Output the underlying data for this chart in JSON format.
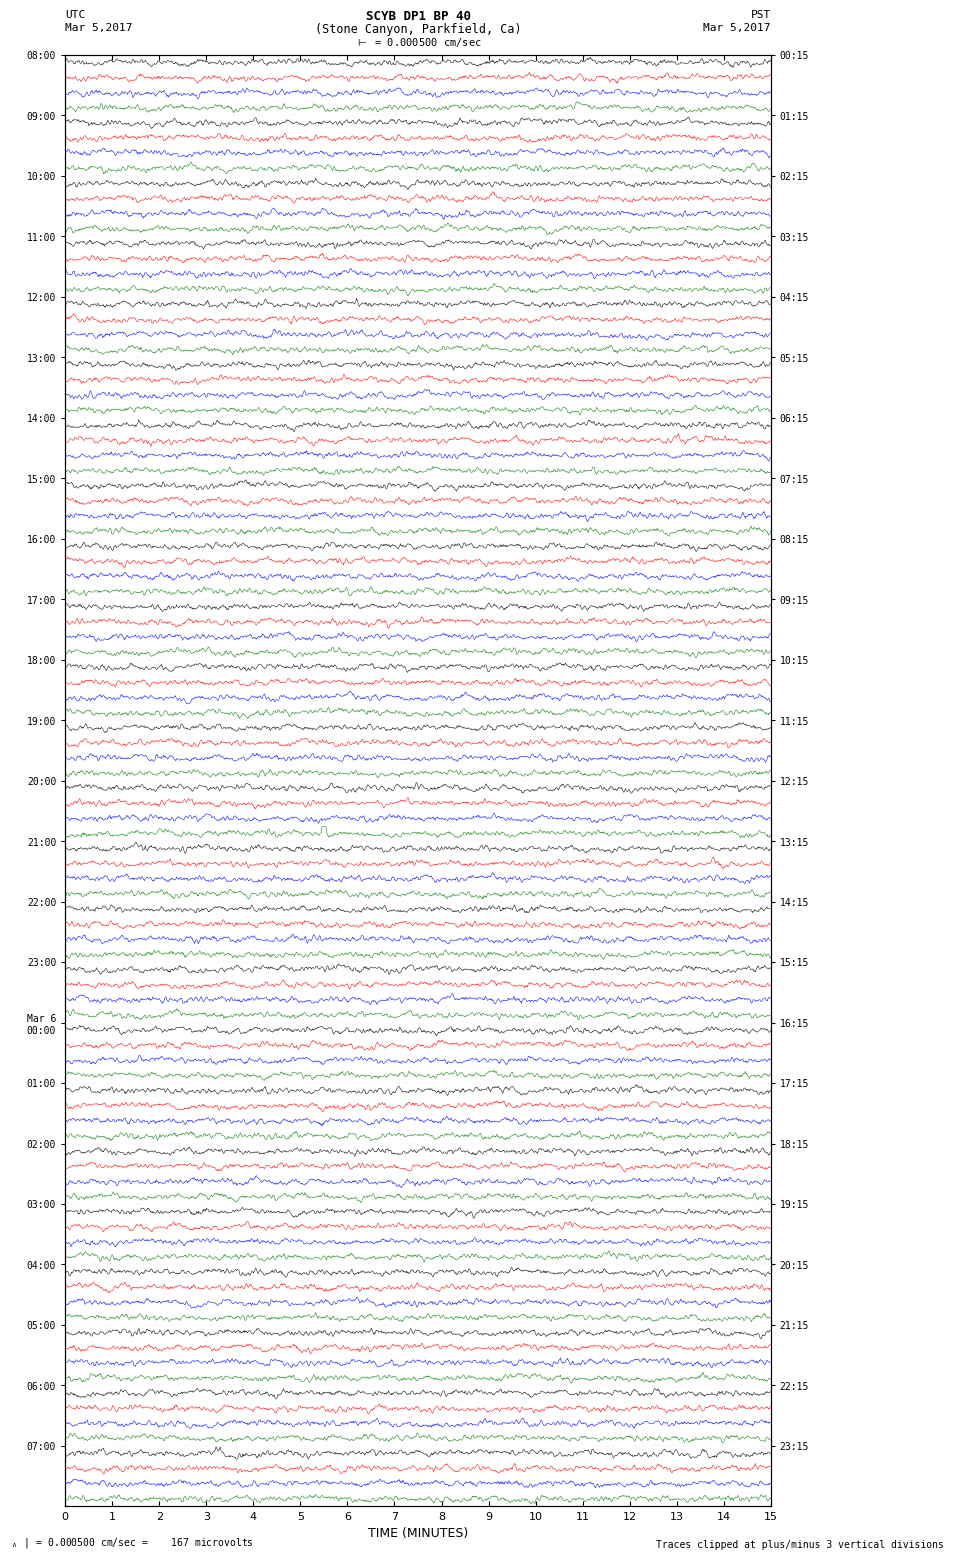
{
  "title_line1": "SCYB DP1 BP 40",
  "title_line2": "(Stone Canyon, Parkfield, Ca)",
  "scale_label": "= 0.000500 cm/sec",
  "left_header": "UTC",
  "left_date": "Mar 5,2017",
  "right_header": "PST",
  "right_date": "Mar 5,2017",
  "footer_scale": "= 0.000500 cm/sec =    167 microvolts",
  "footer_right": "Traces clipped at plus/minus 3 vertical divisions",
  "xlabel": "TIME (MINUTES)",
  "time_min": 0,
  "time_max": 15,
  "colors": [
    "black",
    "red",
    "blue",
    "green"
  ],
  "trace_colors_cycle": [
    "black",
    "red",
    "blue",
    "green"
  ],
  "num_rows": 32,
  "traces_per_row": 4,
  "left_labels_utc": [
    "08:00",
    "09:00",
    "10:00",
    "11:00",
    "12:00",
    "13:00",
    "14:00",
    "15:00",
    "16:00",
    "17:00",
    "18:00",
    "19:00",
    "20:00",
    "21:00",
    "22:00",
    "23:00",
    "Mar 6\n00:00",
    "01:00",
    "02:00",
    "03:00",
    "04:00",
    "05:00",
    "06:00",
    "07:00"
  ],
  "right_labels_pst": [
    "00:15",
    "01:15",
    "02:15",
    "03:15",
    "04:15",
    "05:15",
    "06:15",
    "07:15",
    "08:15",
    "09:15",
    "10:15",
    "11:15",
    "12:15",
    "13:15",
    "14:15",
    "15:15",
    "16:15",
    "17:15",
    "18:15",
    "19:15",
    "20:15",
    "21:15",
    "22:15",
    "23:15"
  ],
  "bg_color": "white",
  "noise_amp": 0.18,
  "event1_row": 2,
  "event1_color": "green",
  "event1_time": 5.7,
  "event2_row": 39,
  "event2_color": "blue",
  "event2_time": 5.2,
  "event3_row": 51,
  "event3_color": "green",
  "event3_time": 5.5,
  "event4_row": 53,
  "event4_color": "blue",
  "event4_time": 12.5
}
